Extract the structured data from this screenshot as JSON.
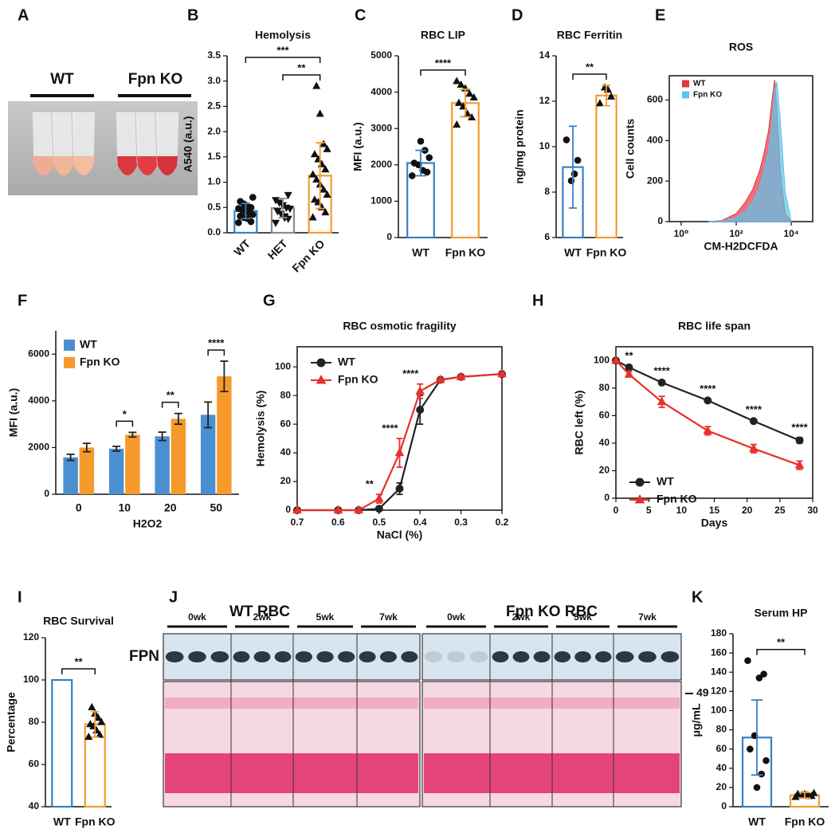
{
  "photo": {
    "panel": "A",
    "labels": [
      "WT",
      "Fpn KO"
    ]
  },
  "blot": {
    "panel": "J",
    "groups": [
      "WT RBC",
      "Fpn KO RBC"
    ],
    "timepoints": [
      "0wk",
      "2wk",
      "5wk",
      "7wk"
    ],
    "band": "FPN",
    "marker": 49
  },
  "chart_data": [
    {
      "panel": "B",
      "type": "bar",
      "title": "Hemolysis",
      "ylabel": "A540 (a.u.)",
      "categories": [
        "WT",
        "HET",
        "Fpn KO"
      ],
      "values": [
        0.43,
        0.49,
        1.13
      ],
      "errors": [
        0.15,
        0.19,
        0.65
      ],
      "points": [
        [
          0.2,
          0.22,
          0.28,
          0.3,
          0.33,
          0.36,
          0.4,
          0.42,
          0.45,
          0.48,
          0.5,
          0.53,
          0.57,
          0.62,
          0.7
        ],
        [
          0.2,
          0.28,
          0.33,
          0.38,
          0.43,
          0.48,
          0.5,
          0.55,
          0.6,
          0.65,
          0.75,
          0.3
        ],
        [
          0.3,
          0.4,
          0.5,
          0.6,
          0.65,
          0.75,
          0.85,
          0.95,
          1.05,
          1.15,
          1.25,
          1.35,
          1.45,
          1.55,
          1.65,
          1.75,
          2.35,
          2.9
        ]
      ],
      "colors": [
        "#3a7fc1",
        "#8c8c8c",
        "#f39c2f"
      ],
      "markers": [
        "circle",
        "triangle-down",
        "triangle"
      ],
      "point_color": "#111111",
      "hollow": true,
      "ylim": [
        0,
        3.5
      ],
      "yticks": [
        {
          "value": 0,
          "label": "0.0"
        },
        0.5,
        {
          "value": 1,
          "label": "1.0"
        },
        1.5,
        {
          "value": 2,
          "label": "2.0"
        },
        2.5,
        {
          "value": 3,
          "label": "3.0"
        },
        3.5
      ],
      "annotations": [
        {
          "text": "***",
          "between": [
            "WT",
            "Fpn KO"
          ]
        },
        {
          "text": "**",
          "between": [
            "HET",
            "Fpn KO"
          ]
        }
      ]
    },
    {
      "panel": "C",
      "type": "bar",
      "title": "RBC LIP",
      "ylabel": "MFI (a.u.)",
      "categories": [
        "WT",
        "Fpn KO"
      ],
      "values": [
        2050,
        3700
      ],
      "errors": [
        350,
        380
      ],
      "points": [
        [
          1700,
          1800,
          1850,
          2000,
          2050,
          2200,
          2400,
          2650
        ],
        [
          3100,
          3300,
          3400,
          3600,
          3700,
          3850,
          3950,
          4100,
          4200,
          4300
        ]
      ],
      "colors": [
        "#3a7fc1",
        "#f39c2f"
      ],
      "markers": [
        "circle",
        "triangle"
      ],
      "point_color": "#111111",
      "hollow": true,
      "ylim": [
        0,
        5000
      ],
      "yticks": [
        0,
        1000,
        2000,
        3000,
        4000,
        5000
      ],
      "annotations": [
        {
          "text": "****",
          "between": [
            "WT",
            "Fpn KO"
          ]
        }
      ]
    },
    {
      "panel": "D",
      "type": "bar",
      "title": "RBC Ferritin",
      "ylabel": "ng/mg protein",
      "categories": [
        "WT",
        "Fpn KO"
      ],
      "values": [
        9.1,
        12.25
      ],
      "errors": [
        1.8,
        0.45
      ],
      "points": [
        [
          10.3,
          9.4,
          8.8,
          8.5
        ],
        [
          11.9,
          12.2,
          12.5,
          12.6
        ]
      ],
      "colors": [
        "#3a7fc1",
        "#f39c2f"
      ],
      "markers": [
        "circle",
        "triangle"
      ],
      "point_color": "#111111",
      "hollow": true,
      "ylim": [
        6,
        14
      ],
      "yticks": [
        6,
        8,
        10,
        12,
        14
      ],
      "annotations": [
        {
          "text": "**",
          "between": [
            "WT",
            "Fpn KO"
          ]
        }
      ]
    },
    {
      "panel": "E",
      "type": "area",
      "title": "ROS",
      "ylabel": "Cell counts",
      "xlabel": "CM-H2DCFDA",
      "x": [
        10,
        30,
        100,
        200,
        400,
        700,
        1000,
        1500,
        2000,
        2500,
        3000,
        4000,
        6000,
        10000
      ],
      "series": [
        {
          "name": "WT",
          "color": "#e8323f",
          "values": [
            0,
            5,
            40,
            90,
            160,
            250,
            330,
            450,
            600,
            700,
            550,
            250,
            40,
            0
          ]
        },
        {
          "name": "Fpn KO",
          "color": "#5bc4ec",
          "values": [
            0,
            2,
            20,
            50,
            100,
            170,
            250,
            350,
            500,
            650,
            690,
            500,
            150,
            0
          ]
        }
      ],
      "xlog": true,
      "xlim": [
        0.37,
        60000
      ],
      "xticks": [
        {
          "value": 1,
          "label": "10⁰"
        },
        {
          "value": 100,
          "label": "10²"
        },
        {
          "value": 10000,
          "label": "10⁴"
        }
      ],
      "ylim": [
        0,
        720
      ],
      "yticks": [
        0,
        200,
        400,
        600
      ],
      "frame": true
    },
    {
      "panel": "F",
      "type": "bar",
      "ylabel": "MFI (a.u.)",
      "xlabel": "H2O2",
      "categories": [
        "0",
        "10",
        "20",
        "50"
      ],
      "series": [
        {
          "name": "WT",
          "color": "#4a8fd0",
          "values": [
            1580,
            1950,
            2480,
            3400
          ],
          "errors": [
            130,
            100,
            180,
            550
          ]
        },
        {
          "name": "Fpn KO",
          "color": "#f59a2b",
          "values": [
            2000,
            2550,
            3230,
            5050
          ],
          "errors": [
            180,
            100,
            230,
            650
          ]
        }
      ],
      "ylim": [
        0,
        7000
      ],
      "yticks": [
        0,
        2000,
        4000,
        6000
      ],
      "annotations": [
        {
          "text": "*",
          "category": "10"
        },
        {
          "text": "**",
          "category": "20"
        },
        {
          "text": "****",
          "category": "50"
        }
      ]
    },
    {
      "panel": "G",
      "type": "line",
      "title": "RBC osmotic fragility",
      "ylabel": "Hemolysis (%)",
      "xlabel": "NaCl (%)",
      "x": [
        0.7,
        0.6,
        0.55,
        0.5,
        0.45,
        0.4,
        0.35,
        0.3,
        0.2
      ],
      "series": [
        {
          "name": "WT",
          "color": "#222222",
          "marker": "circle",
          "values": [
            0,
            0,
            0,
            1,
            15,
            70,
            91,
            93,
            95
          ],
          "errors": [
            0,
            0,
            0,
            0.5,
            4,
            10,
            1,
            1,
            1
          ]
        },
        {
          "name": "Fpn KO",
          "color": "#e8312a",
          "marker": "triangle",
          "values": [
            0,
            0,
            0,
            8,
            40,
            83,
            91,
            93,
            95
          ],
          "errors": [
            0,
            0,
            0,
            3,
            10,
            5,
            1,
            1,
            1
          ]
        }
      ],
      "xlim": [
        0.7,
        0.2
      ],
      "xticks": [
        0.7,
        0.6,
        0.5,
        0.4,
        0.3,
        0.2
      ],
      "ylim": [
        0,
        114
      ],
      "yticks": [
        0,
        20,
        40,
        60,
        80,
        100
      ],
      "frame": true,
      "annotations": [
        {
          "text": "**",
          "x": 0.5
        },
        {
          "text": "****",
          "x": 0.45
        },
        {
          "text": "****",
          "x": 0.4
        }
      ]
    },
    {
      "panel": "H",
      "type": "line",
      "title": "RBC life span",
      "ylabel": "RBC left (%)",
      "xlabel": "Days",
      "x": [
        0,
        2,
        7,
        14,
        21,
        28
      ],
      "series": [
        {
          "name": "WT",
          "color": "#222222",
          "marker": "circle",
          "values": [
            100,
            95,
            84,
            71,
            56,
            42
          ],
          "errors": [
            0,
            1,
            1,
            1,
            1,
            2
          ]
        },
        {
          "name": "Fpn KO",
          "color": "#e8312a",
          "marker": "triangle",
          "values": [
            100,
            90,
            70,
            49,
            36,
            24
          ],
          "errors": [
            0,
            2,
            4,
            3,
            3,
            3
          ]
        }
      ],
      "xlim": [
        0,
        30
      ],
      "xticks": [
        0,
        5,
        10,
        15,
        20,
        25,
        30
      ],
      "ylim": [
        0,
        110
      ],
      "yticks": [
        0,
        20,
        40,
        60,
        80,
        100
      ],
      "frame": true,
      "annotations": [
        {
          "text": "**",
          "x": 2
        },
        {
          "text": "****",
          "x": 7
        },
        {
          "text": "****",
          "x": 14
        },
        {
          "text": "****",
          "x": 21
        },
        {
          "text": "****",
          "x": 28
        }
      ]
    },
    {
      "panel": "I",
      "type": "bar",
      "title": "RBC Survival",
      "ylabel": "Percentage",
      "categories": [
        "WT",
        "Fpn KO"
      ],
      "values": [
        100,
        79
      ],
      "errors": [
        null,
        6
      ],
      "points": [
        [],
        [
          73,
          74,
          76,
          78,
          79,
          80,
          82,
          84,
          87
        ]
      ],
      "colors": [
        "#3a7fc1",
        "#f39c2f"
      ],
      "markers": [
        "circle",
        "triangle"
      ],
      "point_color": "#111111",
      "hollow": true,
      "ylim": [
        40,
        120
      ],
      "yticks": [
        40,
        60,
        80,
        100,
        120
      ],
      "annotations": [
        {
          "text": "**",
          "between": [
            "WT",
            "Fpn KO"
          ]
        }
      ]
    },
    {
      "panel": "K",
      "type": "bar",
      "title": "Serum HP",
      "ylabel": "μg/mL",
      "categories": [
        "WT",
        "Fpn KO"
      ],
      "values": [
        72,
        12
      ],
      "errors": [
        39,
        3
      ],
      "points": [
        [
          152,
          138,
          134,
          74,
          60,
          48,
          34,
          20
        ],
        [
          10,
          11,
          12,
          12,
          13,
          14,
          11,
          13
        ]
      ],
      "colors": [
        "#3a7fc1",
        "#f39c2f"
      ],
      "markers": [
        "circle",
        "triangle"
      ],
      "point_color": "#111111",
      "hollow": true,
      "ylim": [
        0,
        180
      ],
      "yticks": [
        0,
        20,
        40,
        60,
        80,
        100,
        120,
        140,
        160,
        180
      ],
      "annotations": [
        {
          "text": "**",
          "between": [
            "WT",
            "Fpn KO"
          ]
        }
      ]
    }
  ]
}
